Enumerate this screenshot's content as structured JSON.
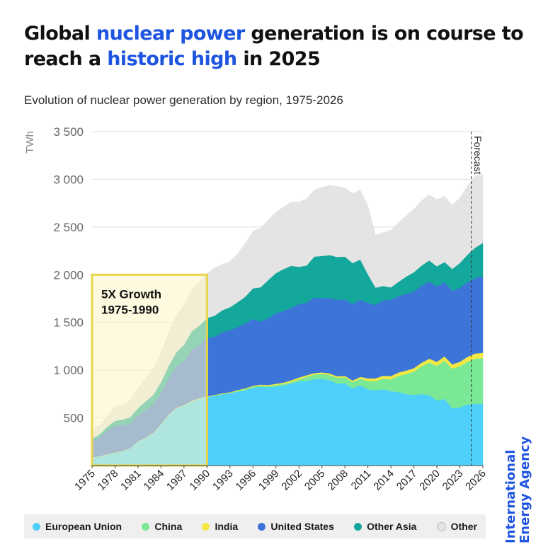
{
  "title": {
    "part1": "Global ",
    "highlight1": "nuclear power",
    "part2": " generation is on course to reach a ",
    "highlight2": "historic high",
    "part3": " in 2025"
  },
  "subtitle": "Evolution of nuclear power generation by region, 1975-2026",
  "logo": {
    "line1": "International",
    "line2": "Energy Agency"
  },
  "colors": {
    "title_highlight": "#1d54e0",
    "highlight_box_fill": "#fdf6c6",
    "highlight_box_stroke": "#e8d54a"
  },
  "chart_data": {
    "type": "area",
    "stacked": true,
    "ylabel": "TWh",
    "ylim": [
      0,
      3500
    ],
    "yticks": [
      500,
      1000,
      1500,
      2000,
      2500,
      3000,
      3500
    ],
    "ytick_labels": [
      "500",
      "1 000",
      "1 500",
      "2 000",
      "2 500",
      "3 000",
      "3 500"
    ],
    "xlim": [
      1975,
      2026
    ],
    "xticks": [
      1975,
      1978,
      1981,
      1984,
      1987,
      1990,
      1993,
      1996,
      1999,
      2002,
      2005,
      2008,
      2011,
      2014,
      2017,
      2020,
      2023,
      2026
    ],
    "xtick_labels": [
      "1975",
      "1978",
      "1981",
      "1984",
      "1987",
      "1990",
      "1993",
      "1996",
      "1999",
      "2002",
      "2005",
      "2008",
      "2011",
      "2014",
      "2017",
      "2020",
      "2023",
      "2026"
    ],
    "grid": "horizontal",
    "forecast_line": {
      "x": 2024.5,
      "label": "Forecast"
    },
    "annotation": {
      "x_start": 1975,
      "x_end": 1990,
      "y_top": 2000,
      "line1": "5X Growth",
      "line2": "1975-1990"
    },
    "x": [
      1975,
      1976,
      1977,
      1978,
      1979,
      1980,
      1981,
      1982,
      1983,
      1984,
      1985,
      1986,
      1987,
      1988,
      1989,
      1990,
      1991,
      1992,
      1993,
      1994,
      1995,
      1996,
      1997,
      1998,
      1999,
      2000,
      2001,
      2002,
      2003,
      2004,
      2005,
      2006,
      2007,
      2008,
      2009,
      2010,
      2011,
      2012,
      2013,
      2014,
      2015,
      2016,
      2017,
      2018,
      2019,
      2020,
      2021,
      2022,
      2023,
      2024,
      2025,
      2026
    ],
    "series": [
      {
        "name": "European Union",
        "color": "#4fd0fb",
        "values": [
          85,
          95,
          115,
          135,
          150,
          180,
          250,
          290,
          340,
          430,
          530,
          600,
          630,
          670,
          700,
          720,
          735,
          750,
          760,
          775,
          790,
          815,
          825,
          820,
          830,
          840,
          860,
          880,
          890,
          905,
          910,
          895,
          860,
          860,
          810,
          840,
          800,
          790,
          800,
          780,
          770,
          750,
          740,
          750,
          740,
          680,
          700,
          600,
          610,
          640,
          650,
          645
        ]
      },
      {
        "name": "China",
        "color": "#7ae894",
        "values": [
          0,
          0,
          0,
          0,
          0,
          0,
          0,
          0,
          0,
          0,
          0,
          0,
          0,
          0,
          0,
          0,
          0,
          1,
          2,
          10,
          12,
          14,
          14,
          14,
          15,
          17,
          17,
          25,
          40,
          50,
          52,
          55,
          60,
          65,
          66,
          70,
          87,
          95,
          110,
          123,
          170,
          210,
          245,
          290,
          340,
          365,
          400,
          415,
          430,
          450,
          470,
          480
        ]
      },
      {
        "name": "India",
        "color": "#f2e844",
        "values": [
          2,
          3,
          3,
          3,
          3,
          3,
          3,
          3,
          3,
          4,
          4,
          5,
          5,
          6,
          6,
          6,
          6,
          7,
          7,
          7,
          8,
          8,
          10,
          11,
          12,
          13,
          17,
          18,
          17,
          15,
          15,
          16,
          16,
          15,
          16,
          20,
          28,
          30,
          32,
          35,
          36,
          36,
          36,
          38,
          40,
          43,
          44,
          46,
          48,
          50,
          55,
          58
        ]
      },
      {
        "name": "United States",
        "color": "#3c74d8",
        "values": [
          170,
          200,
          250,
          280,
          270,
          255,
          270,
          290,
          300,
          330,
          380,
          430,
          460,
          540,
          560,
          610,
          610,
          640,
          650,
          660,
          680,
          700,
          660,
          700,
          740,
          750,
          760,
          770,
          760,
          790,
          780,
          790,
          800,
          800,
          800,
          810,
          790,
          770,
          790,
          800,
          800,
          805,
          805,
          808,
          810,
          790,
          780,
          770,
          775,
          781,
          790,
          800
        ]
      },
      {
        "name": "Other Asia",
        "color": "#14a89c",
        "values": [
          25,
          30,
          40,
          50,
          60,
          70,
          80,
          90,
          100,
          110,
          130,
          150,
          170,
          190,
          200,
          210,
          220,
          230,
          240,
          260,
          280,
          320,
          360,
          400,
          420,
          440,
          440,
          390,
          390,
          430,
          440,
          450,
          450,
          450,
          430,
          420,
          300,
          180,
          150,
          130,
          150,
          180,
          200,
          210,
          220,
          210,
          210,
          230,
          260,
          290,
          320,
          350
        ]
      },
      {
        "name": "Other",
        "color": "#e4e4e4",
        "values": [
          95,
          100,
          110,
          150,
          155,
          180,
          210,
          240,
          270,
          310,
          350,
          390,
          420,
          440,
          460,
          470,
          500,
          480,
          480,
          510,
          560,
          600,
          620,
          630,
          640,
          650,
          670,
          680,
          700,
          700,
          720,
          730,
          740,
          720,
          730,
          730,
          720,
          550,
          560,
          600,
          620,
          640,
          660,
          680,
          690,
          700,
          690,
          670,
          680,
          720,
          750,
          720
        ]
      }
    ]
  }
}
